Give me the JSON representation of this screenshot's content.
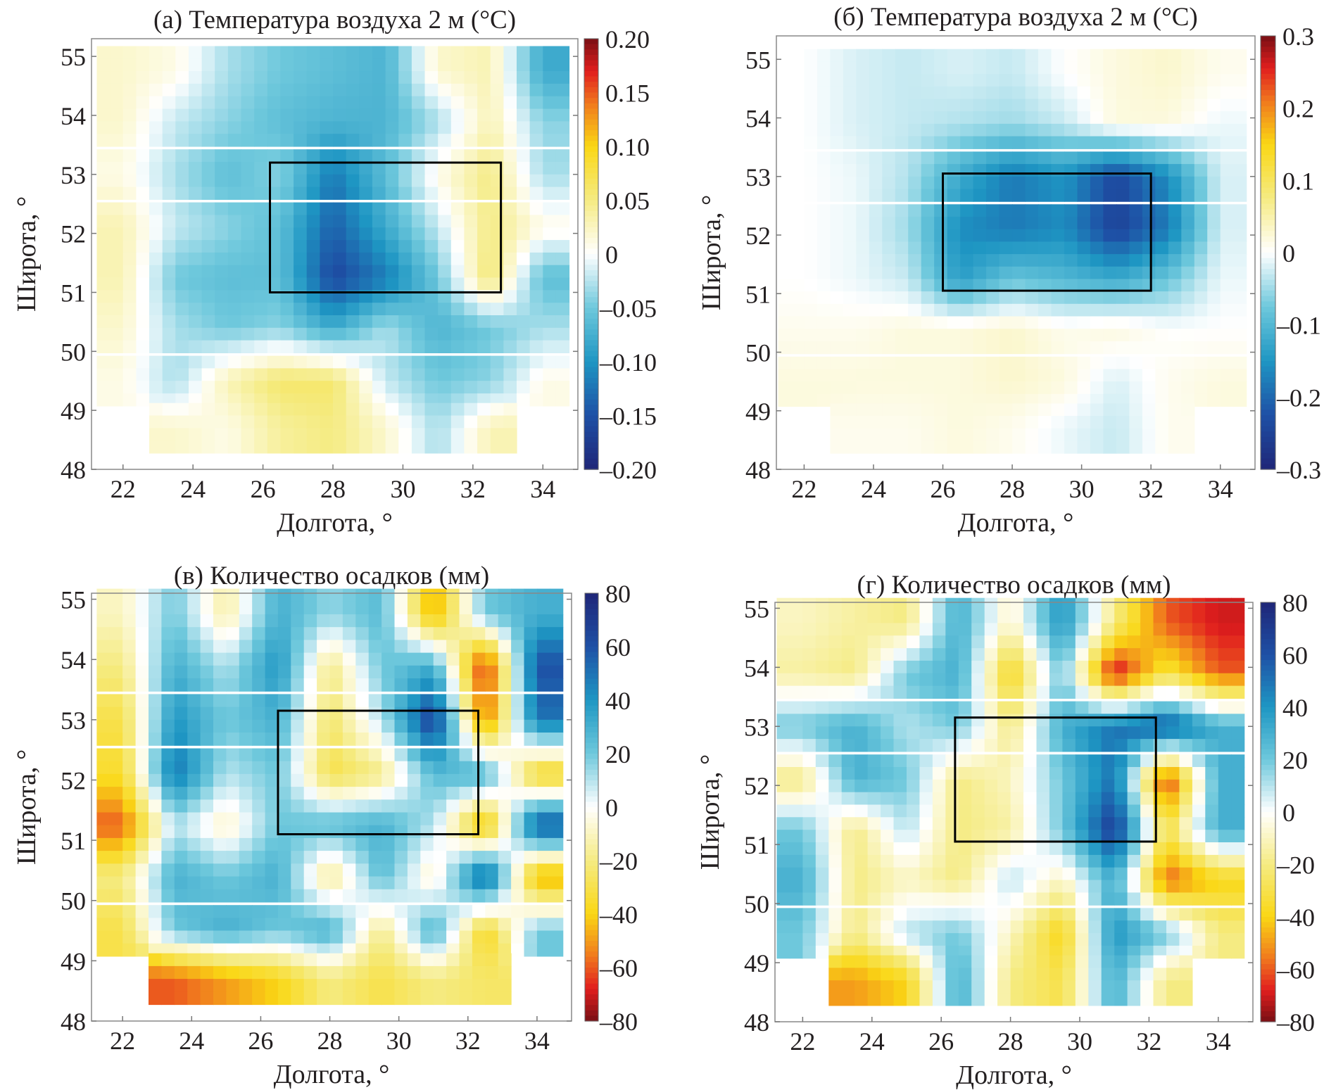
{
  "chart_data": [
    {
      "type": "heatmap",
      "title": "(а) Температура воздуха 2 м (°C)",
      "xlabel": "Долгота, °",
      "ylabel": "Широта, °",
      "xlim": [
        21.1,
        35.0
      ],
      "ylim": [
        48.0,
        55.3
      ],
      "xticks": [
        "22",
        "24",
        "26",
        "28",
        "30",
        "32",
        "34"
      ],
      "yticks": [
        "48",
        "49",
        "50",
        "51",
        "52",
        "53",
        "54",
        "55"
      ],
      "colorbar": {
        "range": [
          -0.2,
          0.2
        ],
        "ticks": [
          "0.20",
          "0.15",
          "0.10",
          "0.05",
          "0",
          "–0.05",
          "–0.10",
          "–0.15",
          "–0.20"
        ],
        "colormap": "positive-warm"
      },
      "box": {
        "lon": [
          26.2,
          32.8
        ],
        "lat": [
          51.0,
          53.2
        ]
      },
      "grid_lon": [
        22,
        23.5,
        25,
        26.5,
        28,
        29.5,
        31,
        32.5,
        34
      ],
      "grid_lat": [
        54.75,
        53.9,
        53.0,
        52.1,
        51.25,
        50.4,
        49.5,
        48.7
      ],
      "values": [
        [
          0.02,
          0.01,
          -0.03,
          -0.05,
          -0.06,
          -0.07,
          0.02,
          0.03,
          -0.08
        ],
        [
          0.02,
          -0.02,
          -0.04,
          -0.06,
          -0.07,
          -0.07,
          -0.03,
          0.03,
          -0.04
        ],
        [
          0.01,
          -0.03,
          -0.06,
          -0.04,
          -0.12,
          -0.06,
          0.01,
          0.05,
          -0.03
        ],
        [
          0.03,
          -0.02,
          -0.04,
          -0.06,
          -0.14,
          -0.08,
          -0.02,
          0.05,
          0.01
        ],
        [
          0.03,
          -0.05,
          -0.06,
          -0.06,
          -0.16,
          -0.12,
          -0.05,
          0.06,
          -0.06
        ],
        [
          0.02,
          -0.03,
          -0.05,
          -0.04,
          -0.08,
          -0.03,
          -0.07,
          -0.05,
          -0.03
        ],
        [
          0.01,
          -0.03,
          0.03,
          0.06,
          0.06,
          -0.02,
          -0.05,
          -0.04,
          0.01
        ],
        [
          null,
          0.02,
          0.01,
          0.04,
          0.05,
          0.02,
          -0.03,
          0.03,
          null
        ]
      ]
    },
    {
      "type": "heatmap",
      "title": "(б) Температура воздуха 2 м (°C)",
      "xlabel": "Долгота, °",
      "ylabel": "Широта, °",
      "xlim": [
        21.2,
        35.0
      ],
      "ylim": [
        48.0,
        55.4
      ],
      "xticks": [
        "22",
        "24",
        "26",
        "28",
        "30",
        "32",
        "34"
      ],
      "yticks": [
        "48",
        "49",
        "50",
        "51",
        "52",
        "53",
        "54",
        "55"
      ],
      "colorbar": {
        "range": [
          -0.3,
          0.3
        ],
        "ticks": [
          "0.3",
          "0.2",
          "0.1",
          "0",
          "–0.1",
          "–0.2",
          "–0.3"
        ],
        "colormap": "positive-warm"
      },
      "box": {
        "lon": [
          26.0,
          32.0
        ],
        "lat": [
          51.05,
          53.05
        ]
      },
      "grid_lon": [
        22,
        23.5,
        25,
        26.5,
        28,
        29.5,
        31,
        32.5,
        34
      ],
      "grid_lat": [
        54.75,
        53.9,
        53.0,
        52.1,
        51.25,
        50.4,
        49.5,
        48.7
      ],
      "values": [
        [
          0,
          -0.02,
          -0.03,
          -0.02,
          -0.03,
          0,
          0.02,
          0.03,
          0.01
        ],
        [
          0,
          -0.02,
          -0.03,
          -0.04,
          -0.05,
          -0.03,
          0.02,
          0.02,
          -0.01
        ],
        [
          0,
          -0.01,
          -0.04,
          -0.12,
          -0.18,
          -0.15,
          -0.24,
          -0.16,
          -0.02
        ],
        [
          0,
          -0.01,
          -0.05,
          -0.16,
          -0.18,
          -0.16,
          -0.25,
          -0.18,
          -0.02
        ],
        [
          0,
          -0.01,
          -0.03,
          -0.14,
          -0.08,
          -0.1,
          -0.12,
          -0.08,
          -0.01
        ],
        [
          0.01,
          0.01,
          0.02,
          0.02,
          0.03,
          0.01,
          0.02,
          0,
          0
        ],
        [
          0.02,
          0.02,
          0.02,
          0.02,
          0.03,
          0.02,
          -0.02,
          0.01,
          0.02
        ],
        [
          null,
          0.01,
          0.01,
          0.02,
          0.01,
          -0.01,
          -0.03,
          0.01,
          null
        ]
      ]
    },
    {
      "type": "heatmap",
      "title": "(в) Количество осадков (мм)",
      "xlabel": "Долгота, °",
      "ylabel": "Широта, °",
      "xlim": [
        21.1,
        35.0
      ],
      "ylim": [
        48.0,
        55.1
      ],
      "xticks": [
        "22",
        "24",
        "26",
        "28",
        "30",
        "32",
        "34"
      ],
      "yticks": [
        "48",
        "49",
        "50",
        "51",
        "52",
        "53",
        "54",
        "55"
      ],
      "colorbar": {
        "range": [
          -80,
          80
        ],
        "ticks": [
          "80",
          "60",
          "40",
          "20",
          "0",
          "–20",
          "–40",
          "–60",
          "–80"
        ],
        "colormap": "positive-wet"
      },
      "box": {
        "lon": [
          26.5,
          32.3
        ],
        "lat": [
          51.1,
          53.15
        ]
      },
      "grid_lon": [
        22,
        23.5,
        25,
        26.5,
        28,
        29.5,
        31,
        32.5,
        34
      ],
      "grid_lat": [
        54.75,
        53.9,
        53.0,
        52.1,
        51.25,
        50.4,
        49.5,
        48.7
      ],
      "values": [
        [
          -10,
          20,
          -15,
          30,
          15,
          25,
          -50,
          20,
          30
        ],
        [
          -20,
          30,
          10,
          40,
          -20,
          20,
          30,
          -70,
          60
        ],
        [
          -30,
          40,
          20,
          30,
          -25,
          10,
          70,
          -60,
          50
        ],
        [
          -35,
          50,
          10,
          20,
          -30,
          -20,
          25,
          30,
          -40
        ],
        [
          -60,
          10,
          -10,
          20,
          25,
          30,
          10,
          -50,
          60
        ],
        [
          -20,
          30,
          20,
          30,
          -20,
          25,
          -10,
          60,
          -50
        ],
        [
          -30,
          20,
          30,
          20,
          30,
          -20,
          30,
          -40,
          20
        ],
        [
          null,
          -60,
          -50,
          -40,
          -20,
          -30,
          -20,
          -25,
          null
        ]
      ]
    },
    {
      "type": "heatmap",
      "title": "(г)  Количество осадков (мм)",
      "xlabel": "Долгота, °",
      "ylabel": "Широта, °",
      "xlim": [
        21.2,
        35.0
      ],
      "ylim": [
        48.0,
        55.1
      ],
      "xticks": [
        "22",
        "24",
        "26",
        "28",
        "30",
        "32",
        "34"
      ],
      "yticks": [
        "48",
        "49",
        "50",
        "51",
        "52",
        "53",
        "54",
        "55"
      ],
      "colorbar": {
        "range": [
          -80,
          80
        ],
        "ticks": [
          "80",
          "60",
          "40",
          "20",
          "0",
          "–20",
          "–40",
          "–60",
          "–80"
        ],
        "colormap": "positive-wet"
      },
      "box": {
        "lon": [
          26.4,
          32.2
        ],
        "lat": [
          51.05,
          53.15
        ]
      },
      "grid_lon": [
        22,
        23.5,
        25,
        26.5,
        28,
        29.5,
        31,
        32.5,
        34
      ],
      "grid_lat": [
        54.75,
        53.9,
        53.0,
        52.1,
        51.25,
        50.4,
        49.5,
        48.7
      ],
      "values": [
        [
          -10,
          -15,
          -20,
          30,
          -10,
          40,
          -20,
          -60,
          -70
        ],
        [
          -15,
          -20,
          20,
          30,
          -40,
          20,
          -75,
          -30,
          -60
        ],
        [
          20,
          30,
          10,
          20,
          -20,
          30,
          50,
          60,
          30
        ],
        [
          -20,
          30,
          20,
          -20,
          -10,
          20,
          50,
          -70,
          30
        ],
        [
          20,
          -20,
          10,
          -20,
          -15,
          20,
          70,
          -30,
          30
        ],
        [
          30,
          -20,
          -10,
          -20,
          10,
          -10,
          30,
          -60,
          -40
        ],
        [
          20,
          -20,
          10,
          20,
          -10,
          -40,
          40,
          20,
          -20
        ],
        [
          null,
          -50,
          -40,
          30,
          -20,
          -30,
          30,
          -20,
          null
        ]
      ]
    }
  ]
}
